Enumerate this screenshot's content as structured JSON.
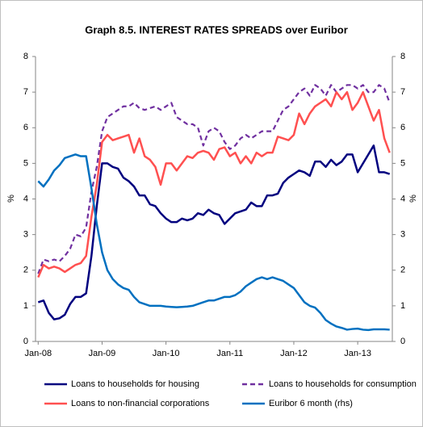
{
  "chart_data": {
    "type": "line",
    "title": "Graph 8.5. INTEREST RATES SPREADS over Euribor",
    "y_label": "%",
    "y2_label": "%",
    "categories": [
      "Jan-08",
      null,
      null,
      null,
      null,
      null,
      null,
      null,
      null,
      null,
      null,
      null,
      "Jan-09",
      null,
      null,
      null,
      null,
      null,
      null,
      null,
      null,
      null,
      null,
      null,
      "Jan-10",
      null,
      null,
      null,
      null,
      null,
      null,
      null,
      null,
      null,
      null,
      null,
      "Jan-11",
      null,
      null,
      null,
      null,
      null,
      null,
      null,
      null,
      null,
      null,
      null,
      "Jan-12",
      null,
      null,
      null,
      null,
      null,
      null,
      null,
      null,
      null,
      null,
      null,
      "Jan-13",
      null,
      null,
      null,
      null,
      null,
      null
    ],
    "ylim": [
      0,
      8
    ],
    "yticks": [
      0,
      1,
      2,
      3,
      4,
      5,
      6,
      7,
      8
    ],
    "y2lim": [
      0,
      8
    ],
    "y2ticks": [
      0,
      1,
      2,
      3,
      4,
      5,
      6,
      7,
      8
    ],
    "grid": false,
    "series": [
      {
        "name": "Loans to households for housing",
        "color": "#00007f",
        "dash": false,
        "values": [
          1.1,
          1.15,
          0.8,
          0.62,
          0.65,
          0.75,
          1.05,
          1.25,
          1.25,
          1.35,
          2.4,
          3.8,
          5.0,
          5.0,
          4.9,
          4.85,
          4.6,
          4.5,
          4.35,
          4.1,
          4.1,
          3.85,
          3.8,
          3.6,
          3.45,
          3.35,
          3.35,
          3.45,
          3.4,
          3.45,
          3.6,
          3.55,
          3.7,
          3.6,
          3.55,
          3.3,
          3.45,
          3.6,
          3.65,
          3.7,
          3.9,
          3.8,
          3.8,
          4.1,
          4.1,
          4.15,
          4.45,
          4.6,
          4.7,
          4.8,
          4.75,
          4.65,
          5.05,
          5.05,
          4.9,
          5.1,
          4.95,
          5.05,
          5.25,
          5.25,
          4.75,
          5.0,
          5.25,
          5.5,
          4.75,
          4.75,
          4.7
        ]
      },
      {
        "name": "Loans to households for consumption",
        "color": "#7030a0",
        "dash": true,
        "values": [
          1.9,
          2.3,
          2.25,
          2.3,
          2.25,
          2.4,
          2.6,
          3.0,
          2.95,
          3.2,
          4.2,
          4.9,
          5.9,
          6.3,
          6.4,
          6.5,
          6.6,
          6.6,
          6.7,
          6.55,
          6.5,
          6.55,
          6.6,
          6.5,
          6.6,
          6.7,
          6.3,
          6.2,
          6.1,
          6.1,
          6.0,
          5.5,
          5.9,
          6.0,
          5.9,
          5.6,
          5.4,
          5.5,
          5.7,
          5.8,
          5.7,
          5.8,
          5.9,
          5.9,
          5.9,
          6.2,
          6.5,
          6.6,
          6.8,
          7.0,
          7.1,
          6.9,
          7.2,
          7.1,
          6.9,
          7.2,
          7.0,
          7.1,
          7.2,
          7.2,
          7.1,
          7.2,
          7.0,
          7.0,
          7.2,
          7.1,
          6.7
        ]
      },
      {
        "name": "Loans to non-financial corporations",
        "color": "#ff5050",
        "dash": false,
        "values": [
          1.8,
          2.15,
          2.05,
          2.1,
          2.05,
          1.95,
          2.05,
          2.15,
          2.2,
          2.4,
          3.5,
          4.4,
          5.6,
          5.8,
          5.65,
          5.7,
          5.75,
          5.8,
          5.3,
          5.7,
          5.2,
          5.1,
          4.9,
          4.4,
          5.0,
          5.0,
          4.8,
          5.0,
          5.2,
          5.15,
          5.3,
          5.35,
          5.3,
          5.1,
          5.4,
          5.45,
          5.2,
          5.3,
          5.0,
          5.2,
          5.0,
          5.3,
          5.2,
          5.3,
          5.3,
          5.75,
          5.7,
          5.65,
          5.8,
          6.4,
          6.1,
          6.4,
          6.6,
          6.7,
          6.8,
          6.6,
          7.0,
          6.8,
          7.0,
          6.5,
          6.7,
          7.0,
          6.6,
          6.2,
          6.5,
          5.7,
          5.3
        ]
      },
      {
        "name": "Euribor 6 month (rhs)",
        "color": "#0070c0",
        "dash": false,
        "axis": "y2",
        "values": [
          4.5,
          4.35,
          4.55,
          4.8,
          4.95,
          5.15,
          5.2,
          5.25,
          5.2,
          5.2,
          4.3,
          3.3,
          2.5,
          2.0,
          1.75,
          1.6,
          1.5,
          1.45,
          1.25,
          1.1,
          1.05,
          1.0,
          1.0,
          1.0,
          0.98,
          0.97,
          0.96,
          0.97,
          0.98,
          1.0,
          1.05,
          1.1,
          1.15,
          1.15,
          1.2,
          1.25,
          1.25,
          1.3,
          1.4,
          1.55,
          1.65,
          1.75,
          1.8,
          1.75,
          1.8,
          1.75,
          1.7,
          1.6,
          1.5,
          1.3,
          1.1,
          1.0,
          0.95,
          0.8,
          0.6,
          0.5,
          0.42,
          0.38,
          0.33,
          0.35,
          0.36,
          0.33,
          0.32,
          0.34,
          0.34,
          0.34,
          0.33
        ]
      }
    ]
  }
}
